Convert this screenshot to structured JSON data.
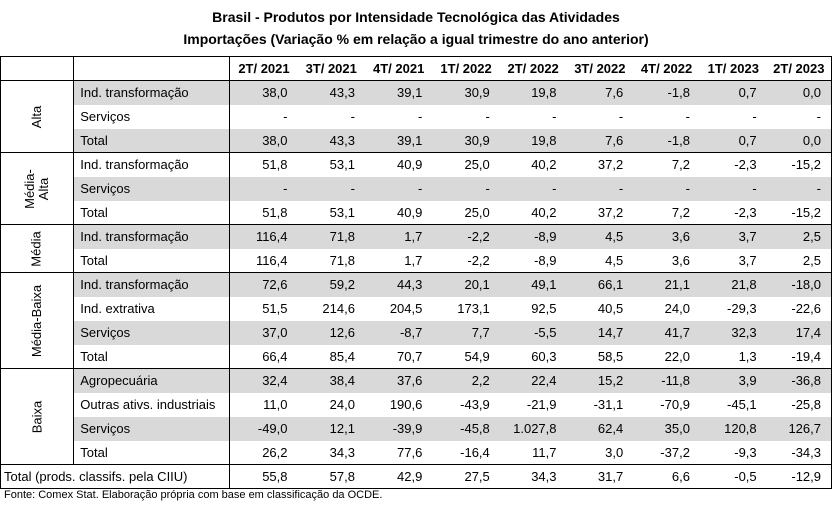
{
  "title_line1": "Brasil - Produtos por Intensidade Tecnológica das Atividades",
  "title_line2": "Importações (Variação % em relação a igual trimestre do ano anterior)",
  "columns": [
    "2T/ 2021",
    "3T/ 2021",
    "4T/ 2021",
    "1T/ 2022",
    "2T/ 2022",
    "3T/ 2022",
    "4T/ 2022",
    "1T/ 2023",
    "2T/ 2023"
  ],
  "groups": [
    {
      "name": "Alta",
      "rows": [
        {
          "label": "Ind. transformação",
          "values": [
            "38,0",
            "43,3",
            "39,1",
            "30,9",
            "19,8",
            "7,6",
            "-1,8",
            "0,7",
            "0,0"
          ],
          "shade": true
        },
        {
          "label": "Serviços",
          "values": [
            "-",
            "-",
            "-",
            "-",
            "-",
            "-",
            "-",
            "-",
            "-"
          ],
          "shade": false
        },
        {
          "label": "Total",
          "values": [
            "38,0",
            "43,3",
            "39,1",
            "30,9",
            "19,8",
            "7,6",
            "-1,8",
            "0,7",
            "0,0"
          ],
          "shade": true
        }
      ]
    },
    {
      "name": "Média-\nAlta",
      "rows": [
        {
          "label": "Ind. transformação",
          "values": [
            "51,8",
            "53,1",
            "40,9",
            "25,0",
            "40,2",
            "37,2",
            "7,2",
            "-2,3",
            "-15,2"
          ],
          "shade": false
        },
        {
          "label": "Serviços",
          "values": [
            "-",
            "-",
            "-",
            "-",
            "-",
            "-",
            "-",
            "-",
            "-"
          ],
          "shade": true
        },
        {
          "label": "Total",
          "values": [
            "51,8",
            "53,1",
            "40,9",
            "25,0",
            "40,2",
            "37,2",
            "7,2",
            "-2,3",
            "-15,2"
          ],
          "shade": false
        }
      ]
    },
    {
      "name": "Média",
      "rows": [
        {
          "label": "Ind. transformação",
          "values": [
            "116,4",
            "71,8",
            "1,7",
            "-2,2",
            "-8,9",
            "4,5",
            "3,6",
            "3,7",
            "2,5"
          ],
          "shade": true
        },
        {
          "label": "Total",
          "values": [
            "116,4",
            "71,8",
            "1,7",
            "-2,2",
            "-8,9",
            "4,5",
            "3,6",
            "3,7",
            "2,5"
          ],
          "shade": false
        }
      ]
    },
    {
      "name": "Média-Baixa",
      "rows": [
        {
          "label": "Ind. transformação",
          "values": [
            "72,6",
            "59,2",
            "44,3",
            "20,1",
            "49,1",
            "66,1",
            "21,1",
            "21,8",
            "-18,0"
          ],
          "shade": true
        },
        {
          "label": "Ind. extrativa",
          "values": [
            "51,5",
            "214,6",
            "204,5",
            "173,1",
            "92,5",
            "40,5",
            "24,0",
            "-29,3",
            "-22,6"
          ],
          "shade": false
        },
        {
          "label": "Serviços",
          "values": [
            "37,0",
            "12,6",
            "-8,7",
            "7,7",
            "-5,5",
            "14,7",
            "41,7",
            "32,3",
            "17,4"
          ],
          "shade": true
        },
        {
          "label": "Total",
          "values": [
            "66,4",
            "85,4",
            "70,7",
            "54,9",
            "60,3",
            "58,5",
            "22,0",
            "1,3",
            "-19,4"
          ],
          "shade": false
        }
      ]
    },
    {
      "name": "Baixa",
      "rows": [
        {
          "label": "Agropecuária",
          "values": [
            "32,4",
            "38,4",
            "37,6",
            "2,2",
            "22,4",
            "15,2",
            "-11,8",
            "3,9",
            "-36,8"
          ],
          "shade": true
        },
        {
          "label": "Outras ativs. industriais",
          "values": [
            "11,0",
            "24,0",
            "190,6",
            "-43,9",
            "-21,9",
            "-31,1",
            "-70,9",
            "-45,1",
            "-25,8"
          ],
          "shade": false
        },
        {
          "label": "Serviços",
          "values": [
            "-49,0",
            "12,1",
            "-39,9",
            "-45,8",
            "1.027,8",
            "62,4",
            "35,0",
            "120,8",
            "126,7"
          ],
          "shade": true
        },
        {
          "label": "Total",
          "values": [
            "26,2",
            "34,3",
            "77,6",
            "-16,4",
            "11,7",
            "3,0",
            "-37,2",
            "-9,3",
            "-34,3"
          ],
          "shade": false
        }
      ]
    }
  ],
  "grand_total": {
    "label": "Total (prods. classifs. pela CIIU)",
    "values": [
      "55,8",
      "57,8",
      "42,9",
      "27,5",
      "34,3",
      "31,7",
      "6,6",
      "-0,5",
      "-12,9"
    ]
  },
  "source": "Fonte: Comex Stat. Elaboração própria com base em classificação da OCDE."
}
